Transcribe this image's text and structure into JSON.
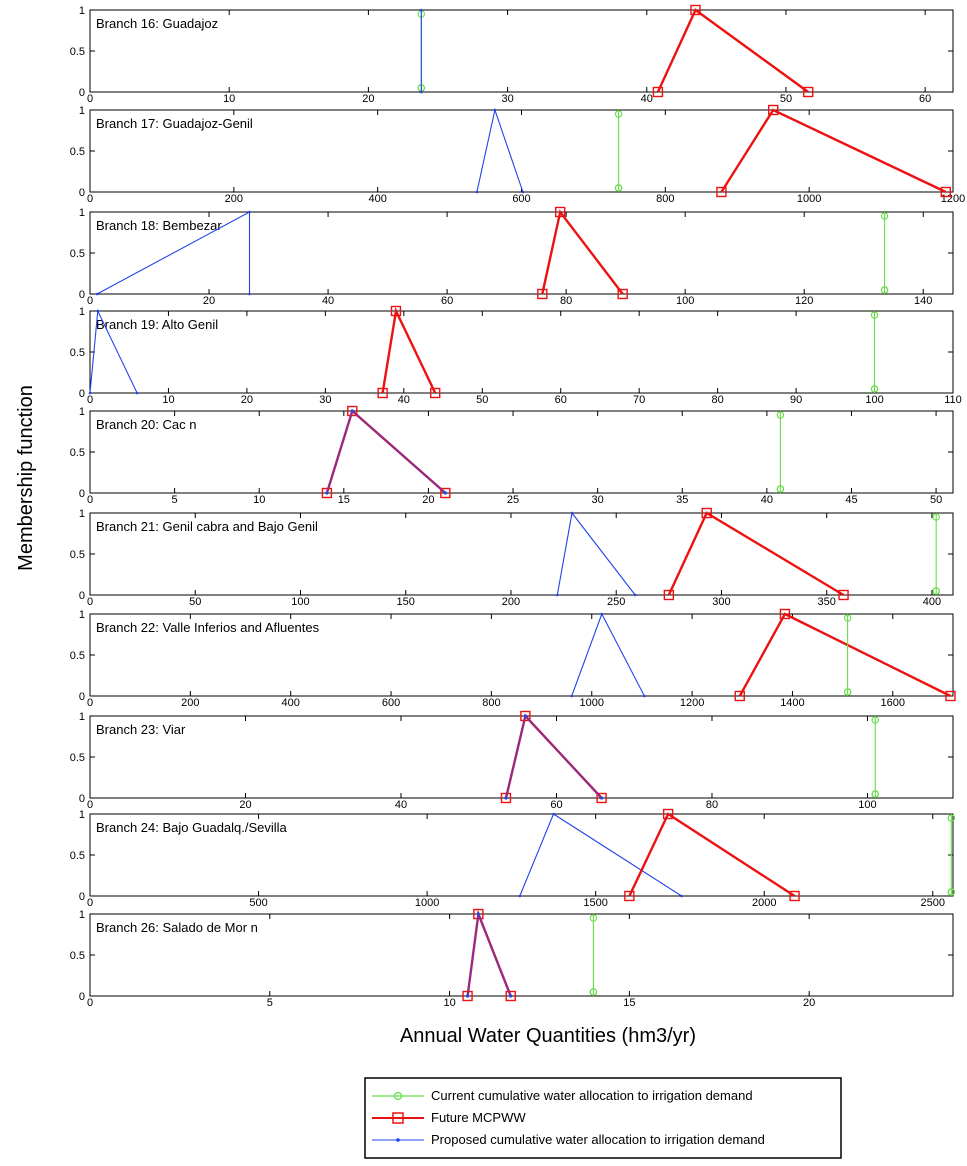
{
  "figure": {
    "ylabel": "Membership function",
    "xlabel": "Annual Water Quantities (hm3/yr)"
  },
  "legend": [
    {
      "label": "Current cumulative water allocation to irrigation demand",
      "color": "#66dd44",
      "marker": "circle"
    },
    {
      "label": "Future MCPWW",
      "color": "#ee1111",
      "marker": "square"
    },
    {
      "label": "Proposed cumulative water allocation to irrigation demand",
      "color": "#2244ee",
      "marker": "dot"
    }
  ],
  "colors": {
    "current": "#66dd44",
    "future": "#ee1111",
    "proposed": "#2244ee",
    "overlap": "#7733aa"
  },
  "chart_data": [
    {
      "type": "line",
      "title": "Branch 16: Guadajoz",
      "xlim": [
        0,
        62
      ],
      "ylim": [
        0,
        1
      ],
      "xticks": [
        0,
        10,
        20,
        30,
        40,
        50,
        60
      ],
      "yticks": [
        0,
        0.5,
        1
      ],
      "series": [
        {
          "key": "current",
          "x": [
            23.8,
            23.8,
            23.8
          ],
          "y": [
            0,
            1,
            0
          ]
        },
        {
          "key": "proposed",
          "x": [
            23.8,
            23.8,
            23.8
          ],
          "y": [
            0,
            1,
            0
          ]
        },
        {
          "key": "future",
          "x": [
            40.8,
            43.5,
            51.6
          ],
          "y": [
            0,
            1,
            0
          ]
        }
      ]
    },
    {
      "type": "line",
      "title": "Branch 17: Guadajoz-Genil",
      "xlim": [
        0,
        1200
      ],
      "ylim": [
        0,
        1
      ],
      "xticks": [
        0,
        200,
        400,
        600,
        800,
        1000,
        1200
      ],
      "yticks": [
        0,
        0.5,
        1
      ],
      "series": [
        {
          "key": "proposed",
          "x": [
            538,
            563,
            602
          ],
          "y": [
            0,
            1,
            0
          ]
        },
        {
          "key": "current",
          "x": [
            735,
            735,
            735
          ],
          "y": [
            0,
            1,
            0
          ]
        },
        {
          "key": "future",
          "x": [
            878,
            950,
            1190
          ],
          "y": [
            0,
            1,
            0
          ]
        }
      ]
    },
    {
      "type": "line",
      "title": "Branch 18:  Bembezar",
      "xlim": [
        0,
        145
      ],
      "ylim": [
        0,
        1
      ],
      "xticks": [
        0,
        20,
        40,
        60,
        80,
        100,
        120,
        140
      ],
      "yticks": [
        0,
        0.5,
        1
      ],
      "series": [
        {
          "key": "proposed",
          "x": [
            1.2,
            26.8,
            26.8
          ],
          "y": [
            0,
            1,
            0
          ]
        },
        {
          "key": "future",
          "x": [
            76,
            79,
            89.5
          ],
          "y": [
            0,
            1,
            0
          ]
        },
        {
          "key": "current",
          "x": [
            133.5,
            133.5,
            133.5
          ],
          "y": [
            0,
            1,
            0
          ]
        }
      ]
    },
    {
      "type": "line",
      "title": "Branch 19: Alto Genil",
      "xlim": [
        0,
        110
      ],
      "ylim": [
        0,
        1
      ],
      "xticks": [
        0,
        10,
        20,
        30,
        40,
        50,
        60,
        70,
        80,
        90,
        100,
        110
      ],
      "yticks": [
        0,
        0.5,
        1
      ],
      "series": [
        {
          "key": "proposed",
          "x": [
            0,
            1,
            6
          ],
          "y": [
            0,
            1,
            0
          ]
        },
        {
          "key": "future",
          "x": [
            37.3,
            39,
            44
          ],
          "y": [
            0,
            1,
            0
          ]
        },
        {
          "key": "current",
          "x": [
            100,
            100,
            100
          ],
          "y": [
            0,
            1,
            0
          ]
        }
      ]
    },
    {
      "type": "line",
      "title": "Branch 20: Cac  n",
      "xlim": [
        0,
        51
      ],
      "ylim": [
        0,
        1
      ],
      "xticks": [
        0,
        5,
        10,
        15,
        20,
        25,
        30,
        35,
        40,
        45,
        50
      ],
      "yticks": [
        0,
        0.5,
        1
      ],
      "series": [
        {
          "key": "future",
          "x": [
            14,
            15.5,
            21
          ],
          "y": [
            0,
            1,
            0
          ]
        },
        {
          "key": "overlap",
          "x": [
            14,
            15.5,
            21
          ],
          "y": [
            0,
            1,
            0
          ]
        },
        {
          "key": "current",
          "x": [
            40.8,
            40.8,
            40.8
          ],
          "y": [
            0,
            1,
            0
          ]
        }
      ]
    },
    {
      "type": "line",
      "title": "Branch 21: Genil cabra and Bajo Genil",
      "xlim": [
        0,
        410
      ],
      "ylim": [
        0,
        1
      ],
      "xticks": [
        0,
        50,
        100,
        150,
        200,
        250,
        300,
        350,
        400
      ],
      "yticks": [
        0,
        0.5,
        1
      ],
      "series": [
        {
          "key": "proposed",
          "x": [
            222,
            229,
            259
          ],
          "y": [
            0,
            1,
            0
          ]
        },
        {
          "key": "future",
          "x": [
            275,
            293,
            358
          ],
          "y": [
            0,
            1,
            0
          ]
        },
        {
          "key": "current",
          "x": [
            402,
            402,
            402
          ],
          "y": [
            0,
            1,
            0
          ]
        }
      ]
    },
    {
      "type": "line",
      "title": "Branch 22: Valle Inferios and Afluentes",
      "xlim": [
        0,
        1720
      ],
      "ylim": [
        0,
        1
      ],
      "xticks": [
        0,
        200,
        400,
        600,
        800,
        1000,
        1200,
        1400,
        1600
      ],
      "yticks": [
        0,
        0.5,
        1
      ],
      "series": [
        {
          "key": "proposed",
          "x": [
            960,
            1020,
            1105
          ],
          "y": [
            0,
            1,
            0
          ]
        },
        {
          "key": "future",
          "x": [
            1295,
            1385,
            1715
          ],
          "y": [
            0,
            1,
            0
          ]
        },
        {
          "key": "current",
          "x": [
            1510,
            1510,
            1510
          ],
          "y": [
            0,
            1,
            0
          ]
        }
      ]
    },
    {
      "type": "line",
      "title": "Branch 23: Viar",
      "xlim": [
        0,
        111
      ],
      "ylim": [
        0,
        1
      ],
      "xticks": [
        0,
        20,
        40,
        60,
        80,
        100
      ],
      "yticks": [
        0,
        0.5,
        1
      ],
      "series": [
        {
          "key": "future",
          "x": [
            53.5,
            56,
            65.8
          ],
          "y": [
            0,
            1,
            0
          ]
        },
        {
          "key": "overlap",
          "x": [
            53.5,
            56,
            65.8
          ],
          "y": [
            0,
            1,
            0
          ]
        },
        {
          "key": "current",
          "x": [
            101,
            101,
            101
          ],
          "y": [
            0,
            1,
            0
          ]
        }
      ]
    },
    {
      "type": "line",
      "title": "Branch 24: Bajo Guadalq./Sevilla",
      "xlim": [
        0,
        2560
      ],
      "ylim": [
        0,
        1
      ],
      "xticks": [
        0,
        500,
        1000,
        1500,
        2000,
        2500
      ],
      "yticks": [
        0,
        0.5,
        1
      ],
      "series": [
        {
          "key": "proposed",
          "x": [
            1275,
            1375,
            1755
          ],
          "y": [
            0,
            1,
            0
          ]
        },
        {
          "key": "future",
          "x": [
            1600,
            1715,
            2090
          ],
          "y": [
            0,
            1,
            0
          ]
        },
        {
          "key": "current",
          "x": [
            2555,
            2555,
            2555
          ],
          "y": [
            0,
            1,
            0
          ]
        }
      ]
    },
    {
      "type": "line",
      "title": "Branch 26: Salado de Mor  n",
      "xlim": [
        0,
        24
      ],
      "ylim": [
        0,
        1
      ],
      "xticks": [
        0,
        5,
        10,
        15,
        20
      ],
      "yticks": [
        0,
        0.5,
        1
      ],
      "series": [
        {
          "key": "future",
          "x": [
            10.5,
            10.8,
            11.7
          ],
          "y": [
            0,
            1,
            0
          ]
        },
        {
          "key": "overlap",
          "x": [
            10.5,
            10.8,
            11.7
          ],
          "y": [
            0,
            1,
            0
          ]
        },
        {
          "key": "current",
          "x": [
            14,
            14,
            14
          ],
          "y": [
            0,
            1,
            0
          ]
        }
      ]
    }
  ]
}
